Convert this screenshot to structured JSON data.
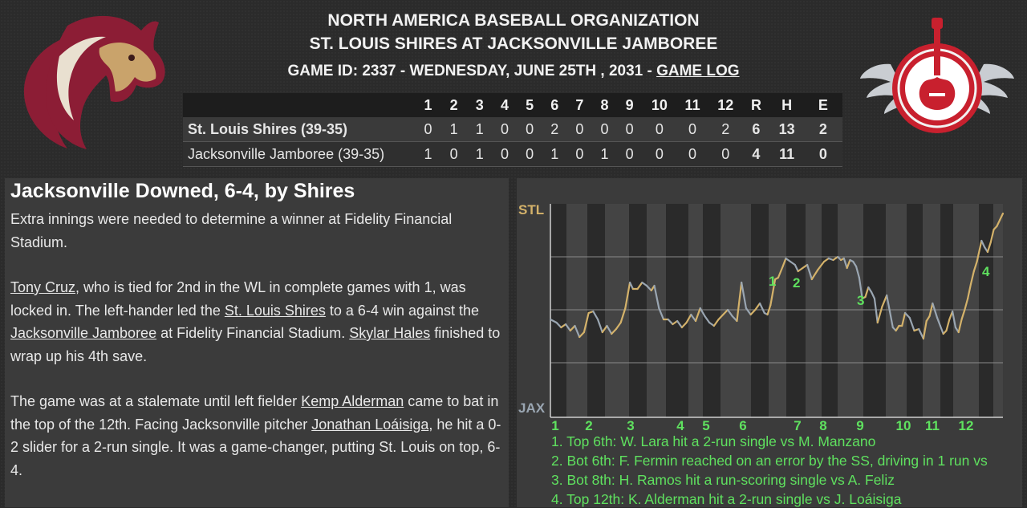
{
  "header": {
    "league": "NORTH AMERICA BASEBALL ORGANIZATION",
    "matchup": "ST. LOUIS SHIRES AT JACKSONVILLE JAMBOREE",
    "game_info": "GAME ID: 2337 - WEDNESDAY, JUNE 25TH , 2031 - ",
    "game_log_link": "GAME LOG"
  },
  "logos": {
    "left": "horse-head-logo",
    "right": "winged-guitar-logo"
  },
  "linescore": {
    "columns": [
      "1",
      "2",
      "3",
      "4",
      "5",
      "6",
      "7",
      "8",
      "9",
      "10",
      "11",
      "12",
      "R",
      "H",
      "E"
    ],
    "teams": [
      {
        "name": "St. Louis Shires (39-35)",
        "innings": [
          "0",
          "1",
          "1",
          "0",
          "0",
          "2",
          "0",
          "0",
          "0",
          "0",
          "0",
          "2"
        ],
        "r": "6",
        "h": "13",
        "e": "2"
      },
      {
        "name": "Jacksonville Jamboree (39-35)",
        "innings": [
          "1",
          "0",
          "1",
          "0",
          "0",
          "1",
          "0",
          "1",
          "0",
          "0",
          "0",
          "0"
        ],
        "r": "4",
        "h": "11",
        "e": "0"
      }
    ]
  },
  "story": {
    "title": "Jacksonville Downed, 6-4, by Shires",
    "p1": "Extra innings were needed to determine a winner at Fidelity Financial Stadium.",
    "p2": {
      "link1": "Tony Cruz",
      "t1": ", who is tied for 2nd in the WL in complete games with 1, was locked in. The left-hander led the ",
      "link2": "St. Louis Shires",
      "t2": " to a 6-4 win against the ",
      "link3": "Jacksonville Jamboree",
      "t3": " at Fidelity Financial Stadium. ",
      "link4": "Skylar Hales",
      "t4": " finished to wrap up his 4th save."
    },
    "p3": {
      "t1": "The game was at a stalemate until left fielder ",
      "link1": "Kemp Alderman",
      "t2": " came to bat in the top of the 12th. Facing Jacksonville pitcher ",
      "link2": "Jonathan Loáisiga",
      "t3": ", he hit a 0-2 slider for a 2-run single. It was a game-changer, putting St. Louis on top, 6-4."
    }
  },
  "win_chart": {
    "top_label": "STL",
    "bottom_label": "JAX",
    "inning_labels": [
      "1",
      "2",
      "3",
      "4",
      "5",
      "6",
      "7",
      "8",
      "9",
      "10",
      "11",
      "12"
    ],
    "marker_labels": [
      "1",
      "2",
      "3",
      "4"
    ],
    "colors": {
      "stl": "#d4b26a",
      "jax": "#9aa6b2",
      "marker": "#5fe15f"
    },
    "notes": [
      "1. Top 6th: W. Lara hit a 2-run single vs M. Manzano",
      "2. Bot 6th: F. Fermin reached on an error by the SS, driving in 1 run vs",
      "3. Bot 8th: H. Ramos hit a run-scoring single vs A. Feliz",
      "4. Top 12th: K. Alderman hit a 2-run single vs J. Loáisiga"
    ]
  }
}
